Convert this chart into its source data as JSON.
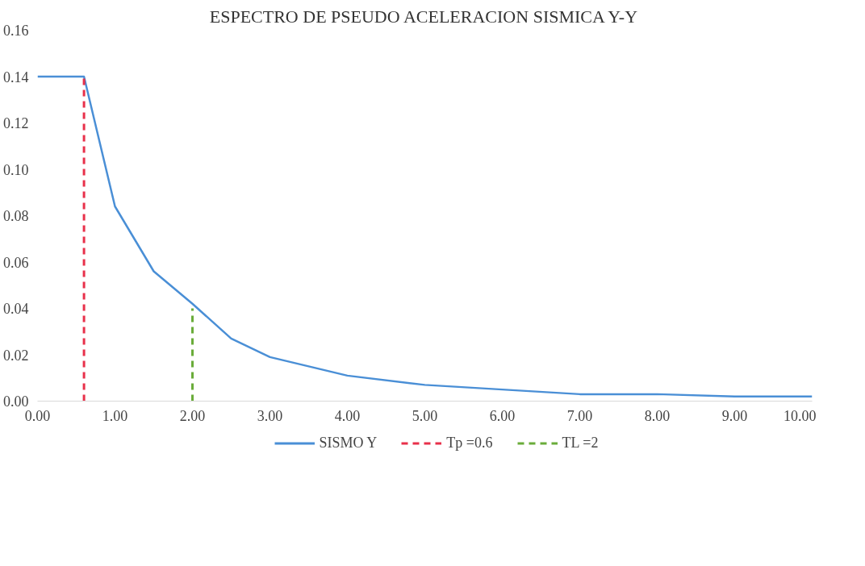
{
  "chart_data": {
    "type": "line",
    "title": "ESPECTRO DE PSEUDO ACELERACION SISMICA Y-Y",
    "xlim": [
      0,
      10
    ],
    "ylim": [
      0,
      0.16
    ],
    "xticks": [
      {
        "value": 0,
        "label": "0.00"
      },
      {
        "value": 1,
        "label": "1.00"
      },
      {
        "value": 2,
        "label": "2.00"
      },
      {
        "value": 3,
        "label": "3.00"
      },
      {
        "value": 4,
        "label": "4.00"
      },
      {
        "value": 5,
        "label": "5.00"
      },
      {
        "value": 6,
        "label": "6.00"
      },
      {
        "value": 7,
        "label": "7.00"
      },
      {
        "value": 8,
        "label": "8.00"
      },
      {
        "value": 9,
        "label": "9.00"
      },
      {
        "value": 10,
        "label": "10.00"
      }
    ],
    "yticks": [
      {
        "value": 0,
        "label": "0.00"
      },
      {
        "value": 0.02,
        "label": "0.02"
      },
      {
        "value": 0.04,
        "label": "0.04"
      },
      {
        "value": 0.06,
        "label": "0.06"
      },
      {
        "value": 0.08,
        "label": "0.08"
      },
      {
        "value": 0.1,
        "label": "0.10"
      },
      {
        "value": 0.12,
        "label": "0.12"
      },
      {
        "value": 0.14,
        "label": "0.14"
      },
      {
        "value": 0.16,
        "label": "0.16"
      }
    ],
    "grid": false,
    "legend": "bottom",
    "series": [
      {
        "name": "SISMO Y",
        "color": "#4a8fd6",
        "line_style": "solid",
        "x": [
          0,
          0.6,
          1.0,
          1.5,
          2.0,
          2.5,
          3.0,
          4.0,
          5.0,
          6.0,
          7.0,
          8.0,
          9.0,
          10.0
        ],
        "values": [
          0.14,
          0.14,
          0.084,
          0.056,
          0.042,
          0.027,
          0.019,
          0.011,
          0.007,
          0.005,
          0.003,
          0.003,
          0.002,
          0.002
        ]
      },
      {
        "name": "Tp =0.6",
        "color": "#e8304a",
        "line_style": "dashed",
        "x": [
          0.6,
          0.6
        ],
        "values": [
          0,
          0.14
        ]
      },
      {
        "name": "TL =2",
        "color": "#6aac3a",
        "line_style": "dashed",
        "x": [
          2,
          2
        ],
        "values": [
          0,
          0.04
        ]
      }
    ]
  }
}
